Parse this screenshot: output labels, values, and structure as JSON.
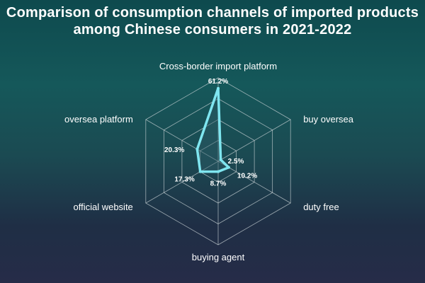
{
  "chart_data": {
    "type": "radar",
    "title": "Comparison of consumption channels of imported products among Chinese consumers in 2021-2022",
    "categories": [
      "Cross-border import platform",
      "buy oversea",
      "duty free",
      "buying agent",
      "official website",
      "oversea platform"
    ],
    "values": [
      61.2,
      2.5,
      10.2,
      8.7,
      17.3,
      20.3
    ],
    "data_labels": [
      "61.2%",
      "2.5%",
      "10.2%",
      "8.7%",
      "17.3%",
      "20.3%"
    ],
    "rmax": 70,
    "grid_levels": 4,
    "colors": {
      "series": "#7fe6f0",
      "grid": "#c9d3d6"
    }
  }
}
